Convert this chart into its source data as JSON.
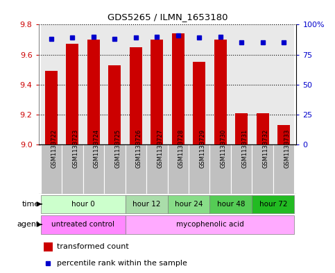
{
  "title": "GDS5265 / ILMN_1653180",
  "samples": [
    "GSM1133722",
    "GSM1133723",
    "GSM1133724",
    "GSM1133725",
    "GSM1133726",
    "GSM1133727",
    "GSM1133728",
    "GSM1133729",
    "GSM1133730",
    "GSM1133731",
    "GSM1133732",
    "GSM1133733"
  ],
  "bar_values": [
    9.49,
    9.67,
    9.7,
    9.53,
    9.65,
    9.7,
    9.74,
    9.55,
    9.7,
    9.21,
    9.21,
    9.13
  ],
  "percentile_values": [
    88,
    89,
    90,
    88,
    89,
    90,
    91,
    89,
    90,
    85,
    85,
    85
  ],
  "bar_bottom": 9.0,
  "ylim": [
    9.0,
    9.8
  ],
  "yticks": [
    9.0,
    9.2,
    9.4,
    9.6,
    9.8
  ],
  "y2ticks": [
    0,
    25,
    50,
    75,
    100
  ],
  "y2labels": [
    "0",
    "25",
    "50",
    "75",
    "100%"
  ],
  "bar_color": "#cc0000",
  "dot_color": "#0000cc",
  "grid_color": "#000000",
  "time_groups": [
    {
      "label": "hour 0",
      "start": 0,
      "end": 4,
      "color": "#ccffcc"
    },
    {
      "label": "hour 12",
      "start": 4,
      "end": 6,
      "color": "#aaddaa"
    },
    {
      "label": "hour 24",
      "start": 6,
      "end": 8,
      "color": "#88dd88"
    },
    {
      "label": "hour 48",
      "start": 8,
      "end": 10,
      "color": "#55cc55"
    },
    {
      "label": "hour 72",
      "start": 10,
      "end": 12,
      "color": "#22bb22"
    }
  ],
  "agent_groups": [
    {
      "label": "untreated control",
      "start": 0,
      "end": 4,
      "color": "#ff88ff"
    },
    {
      "label": "mycophenolic acid",
      "start": 4,
      "end": 12,
      "color": "#ffaaff"
    }
  ],
  "tick_label_color": "#cc0000",
  "y2_color": "#0000cc",
  "sample_bg": "#c0c0c0",
  "time_label": "time",
  "agent_label": "agent",
  "legend_bar_label": "transformed count",
  "legend_dot_label": "percentile rank within the sample",
  "fig_width": 4.83,
  "fig_height": 3.93,
  "dpi": 100
}
